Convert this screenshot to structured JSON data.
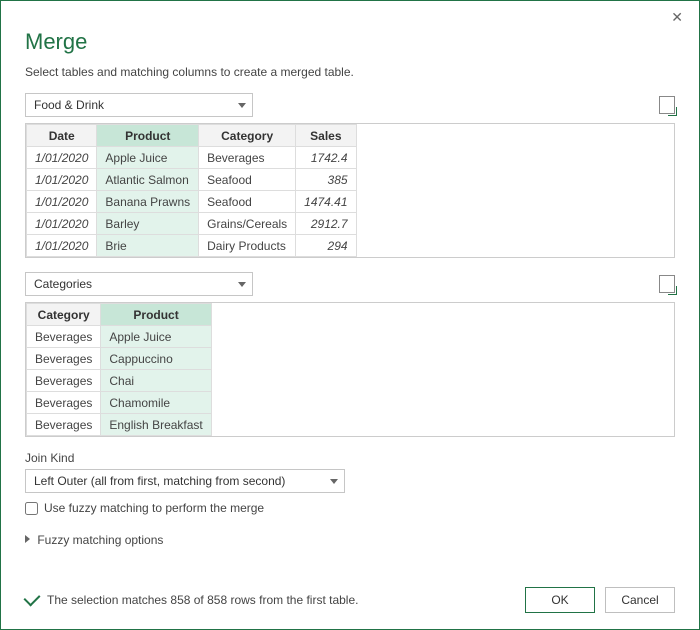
{
  "dialog": {
    "title": "Merge",
    "subtitle": "Select tables and matching columns to create a merged table."
  },
  "table1": {
    "dropdown": "Food & Drink",
    "columns": [
      "Date",
      "Product",
      "Category",
      "Sales"
    ],
    "selected_col_index": 1,
    "rows": [
      [
        "1/01/2020",
        "Apple Juice",
        "Beverages",
        "1742.4"
      ],
      [
        "1/01/2020",
        "Atlantic Salmon",
        "Seafood",
        "385"
      ],
      [
        "1/01/2020",
        "Banana Prawns",
        "Seafood",
        "1474.41"
      ],
      [
        "1/01/2020",
        "Barley",
        "Grains/Cereals",
        "2912.7"
      ],
      [
        "1/01/2020",
        "Brie",
        "Dairy Products",
        "294"
      ]
    ]
  },
  "table2": {
    "dropdown": "Categories",
    "columns": [
      "Category",
      "Product"
    ],
    "selected_col_index": 1,
    "rows": [
      [
        "Beverages",
        "Apple Juice"
      ],
      [
        "Beverages",
        "Cappuccino"
      ],
      [
        "Beverages",
        "Chai"
      ],
      [
        "Beverages",
        "Chamomile"
      ],
      [
        "Beverages",
        "English Breakfast"
      ]
    ]
  },
  "join": {
    "label": "Join Kind",
    "value": "Left Outer (all from first, matching from second)"
  },
  "fuzzy": {
    "checkbox_label": "Use fuzzy matching to perform the merge",
    "checked": false,
    "expander_label": "Fuzzy matching options"
  },
  "status": {
    "text": "The selection matches 858 of 858 rows from the first table."
  },
  "buttons": {
    "ok": "OK",
    "cancel": "Cancel"
  },
  "colors": {
    "brand": "#217346",
    "sel_header": "#c7e6d7",
    "sel_cell": "#e2f3eb",
    "border": "#c6c6c6"
  }
}
